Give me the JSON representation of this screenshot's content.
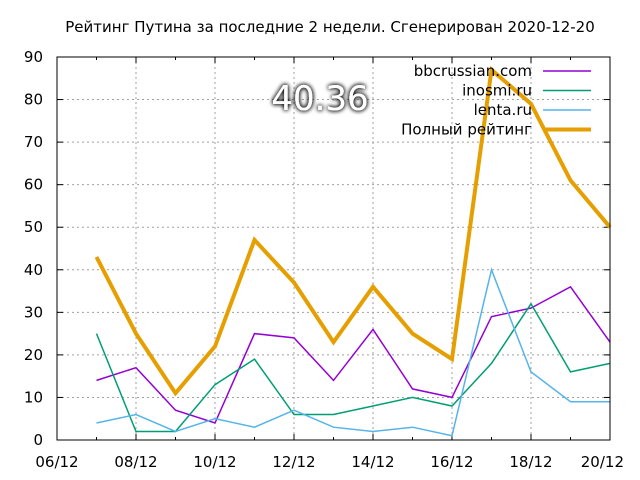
{
  "chart_data": {
    "type": "line",
    "title": "Рейтинг Путина за последние 2 недели. Сгенерирован 2020-12-20",
    "xlabel": "",
    "ylabel": "",
    "ylim": [
      0,
      90
    ],
    "yticks": [
      0,
      10,
      20,
      30,
      40,
      50,
      60,
      70,
      80,
      90
    ],
    "xlim": [
      "2020-12-06",
      "2020-12-20"
    ],
    "xtick_dates": [
      "2020-12-06",
      "2020-12-08",
      "2020-12-10",
      "2020-12-12",
      "2020-12-14",
      "2020-12-16",
      "2020-12-18",
      "2020-12-20"
    ],
    "xtick_labels": [
      "06/12",
      "08/12",
      "10/12",
      "12/12",
      "14/12",
      "16/12",
      "18/12",
      "20/12"
    ],
    "x": [
      "2020-12-07",
      "2020-12-08",
      "2020-12-09",
      "2020-12-10",
      "2020-12-11",
      "2020-12-12",
      "2020-12-13",
      "2020-12-14",
      "2020-12-15",
      "2020-12-16",
      "2020-12-17",
      "2020-12-18",
      "2020-12-19",
      "2020-12-20"
    ],
    "grid": true,
    "legend_position": "top-right",
    "annotation": "40.36",
    "series": [
      {
        "name": "bbcrussian.com",
        "color": "#9400d3",
        "line_width": 1.5,
        "values": [
          14,
          17,
          7,
          4,
          25,
          24,
          14,
          26,
          12,
          10,
          29,
          31,
          36,
          23
        ]
      },
      {
        "name": "inosmi.ru",
        "color": "#009e73",
        "line_width": 1.5,
        "values": [
          25,
          2,
          2,
          13,
          19,
          6,
          6,
          8,
          10,
          8,
          18,
          32,
          16,
          18
        ]
      },
      {
        "name": "lenta.ru",
        "color": "#56b4e9",
        "line_width": 1.5,
        "values": [
          4,
          6,
          2,
          5,
          3,
          7,
          3,
          2,
          3,
          1,
          40,
          16,
          9,
          9
        ]
      },
      {
        "name": "Полный рейтинг",
        "color": "#e69f00",
        "line_width": 4,
        "values": [
          43,
          25,
          11,
          22,
          47,
          37,
          23,
          36,
          25,
          19,
          87,
          79,
          61,
          50
        ]
      }
    ]
  }
}
